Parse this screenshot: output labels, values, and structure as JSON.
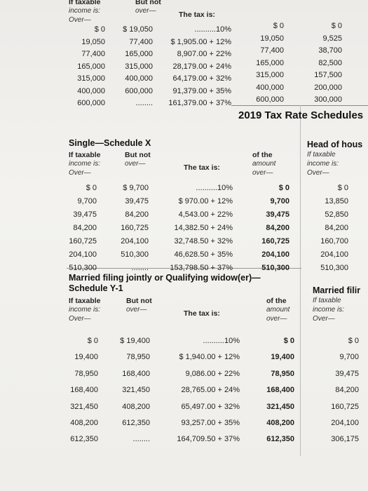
{
  "heading": "2019 Tax Rate Schedules",
  "sections": [
    {
      "over_header": [
        "If taxable",
        "income is:",
        "Over—"
      ],
      "but_not_header": [
        "But not",
        "over—"
      ],
      "tax_header": [
        "The tax is:"
      ],
      "rows": [
        [
          "$ 0",
          "$ 19,050",
          "..........10%",
          "$ 0",
          "$ 0"
        ],
        [
          "19,050",
          "77,400",
          "$ 1,905.00 + 12%",
          "19,050",
          "9,525"
        ],
        [
          "77,400",
          "165,000",
          "8,907.00 + 22%",
          "77,400",
          "38,700"
        ],
        [
          "165,000",
          "315,000",
          "28,179.00 + 24%",
          "165,000",
          "82,500"
        ],
        [
          "315,000",
          "400,000",
          "64,179.00 + 32%",
          "315,000",
          "157,500"
        ],
        [
          "400,000",
          "600,000",
          "91,379.00 + 35%",
          "400,000",
          "200,000"
        ],
        [
          "600,000",
          "........",
          "161,379.00 + 37%",
          "600,000",
          "300,000"
        ]
      ]
    },
    {
      "title": [
        "Single—Schedule X"
      ],
      "over_header": [
        "If taxable",
        "income is:",
        "Over—"
      ],
      "but_not_header": [
        "But not",
        "over—"
      ],
      "tax_header": [
        "The tax is:"
      ],
      "amount_header": [
        "of the",
        "amount",
        "over—"
      ],
      "right_header": [
        "Head of hous",
        "If taxable",
        "income is:",
        "Over—"
      ],
      "rows": [
        [
          "$ 0",
          "$ 9,700",
          "..........10%",
          "$ 0",
          "$ 0"
        ],
        [
          "9,700",
          "39,475",
          "$ 970.00 + 12%",
          "9,700",
          "13,850"
        ],
        [
          "39,475",
          "84,200",
          "4,543.00 + 22%",
          "39,475",
          "52,850"
        ],
        [
          "84,200",
          "160,725",
          "14,382.50 + 24%",
          "84,200",
          "84,200"
        ],
        [
          "160,725",
          "204,100",
          "32,748.50 + 32%",
          "160,725",
          "160,700"
        ],
        [
          "204,100",
          "510,300",
          "46,628.50 + 35%",
          "204,100",
          "204,100"
        ],
        [
          "510,300",
          "........",
          "153,798.50 + 37%",
          "510,300",
          "510,300"
        ]
      ]
    },
    {
      "title": [
        "Married filing jointly or Qualifying widow(er)—",
        "Schedule Y-1"
      ],
      "over_header": [
        "If taxable",
        "income is:",
        "Over—"
      ],
      "but_not_header": [
        "But not",
        "over—"
      ],
      "tax_header": [
        "The tax is:"
      ],
      "amount_header": [
        "of the",
        "amount",
        "over—"
      ],
      "right_header": [
        "Married filir",
        "If taxable",
        "income is:",
        "Over—"
      ],
      "rows": [
        [
          "$ 0",
          "$ 19,400",
          "..........10%",
          "$ 0",
          "$ 0"
        ],
        [
          "19,400",
          "78,950",
          "$ 1,940.00 + 12%",
          "19,400",
          "9,700"
        ],
        [
          "78,950",
          "168,400",
          "9,086.00 + 22%",
          "78,950",
          "39,475"
        ],
        [
          "168,400",
          "321,450",
          "28,765.00 + 24%",
          "168,400",
          "84,200"
        ],
        [
          "321,450",
          "408,200",
          "65,497.00 + 32%",
          "321,450",
          "160,725"
        ],
        [
          "408,200",
          "612,350",
          "93,257.00 + 35%",
          "408,200",
          "204,100"
        ],
        [
          "612,350",
          "........",
          "164,709.50 + 37%",
          "612,350",
          "306,175"
        ]
      ]
    }
  ]
}
